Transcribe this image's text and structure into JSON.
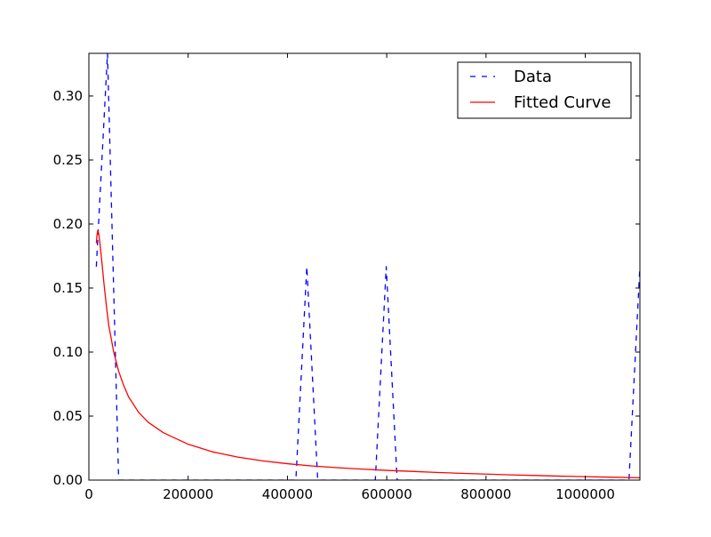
{
  "chart_data": {
    "type": "line",
    "title": "",
    "xlabel": "",
    "ylabel": "",
    "xlim": [
      0,
      1110000
    ],
    "ylim": [
      0,
      0.3333
    ],
    "grid": false,
    "legend_position": "top-right",
    "x_ticks": [
      {
        "value": 0,
        "label": "0"
      },
      {
        "value": 200000,
        "label": "200000"
      },
      {
        "value": 400000,
        "label": "400000"
      },
      {
        "value": 600000,
        "label": "600000"
      },
      {
        "value": 800000,
        "label": "800000"
      },
      {
        "value": 1000000,
        "label": "1000000"
      }
    ],
    "y_ticks": [
      {
        "value": 0.0,
        "label": "0.00"
      },
      {
        "value": 0.05,
        "label": "0.05"
      },
      {
        "value": 0.1,
        "label": "0.10"
      },
      {
        "value": 0.15,
        "label": "0.15"
      },
      {
        "value": 0.2,
        "label": "0.20"
      },
      {
        "value": 0.25,
        "label": "0.25"
      },
      {
        "value": 0.3,
        "label": "0.30"
      }
    ],
    "series": [
      {
        "name": "Data",
        "color": "#0000ff",
        "style": "dashed",
        "x": [
          15000,
          37500,
          60000,
          417000,
          439000,
          461000,
          577000,
          599000,
          621000,
          1088000,
          1110000
        ],
        "y": [
          0.1667,
          0.3333,
          0.0,
          0.0,
          0.1667,
          0.0,
          0.0,
          0.1667,
          0.0,
          0.0,
          0.1667
        ]
      },
      {
        "name": "Fitted Curve",
        "color": "#ff0000",
        "style": "solid",
        "x": [
          15000,
          16000,
          17000,
          18000,
          19000,
          20000,
          22000,
          25000,
          30000,
          35000,
          40000,
          50000,
          60000,
          70000,
          80000,
          100000,
          120000,
          150000,
          200000,
          250000,
          300000,
          350000,
          400000,
          450000,
          500000,
          550000,
          600000,
          650000,
          700000,
          750000,
          800000,
          850000,
          900000,
          950000,
          1000000,
          1050000,
          1110000
        ],
        "y": [
          0.185,
          0.19,
          0.193,
          0.195,
          0.194,
          0.192,
          0.186,
          0.175,
          0.155,
          0.137,
          0.121,
          0.1,
          0.085,
          0.074,
          0.065,
          0.053,
          0.045,
          0.037,
          0.028,
          0.022,
          0.018,
          0.015,
          0.0128,
          0.011,
          0.0097,
          0.0086,
          0.0076,
          0.0068,
          0.006,
          0.0053,
          0.0047,
          0.0041,
          0.0036,
          0.0031,
          0.0027,
          0.0023,
          0.0018
        ]
      }
    ]
  }
}
